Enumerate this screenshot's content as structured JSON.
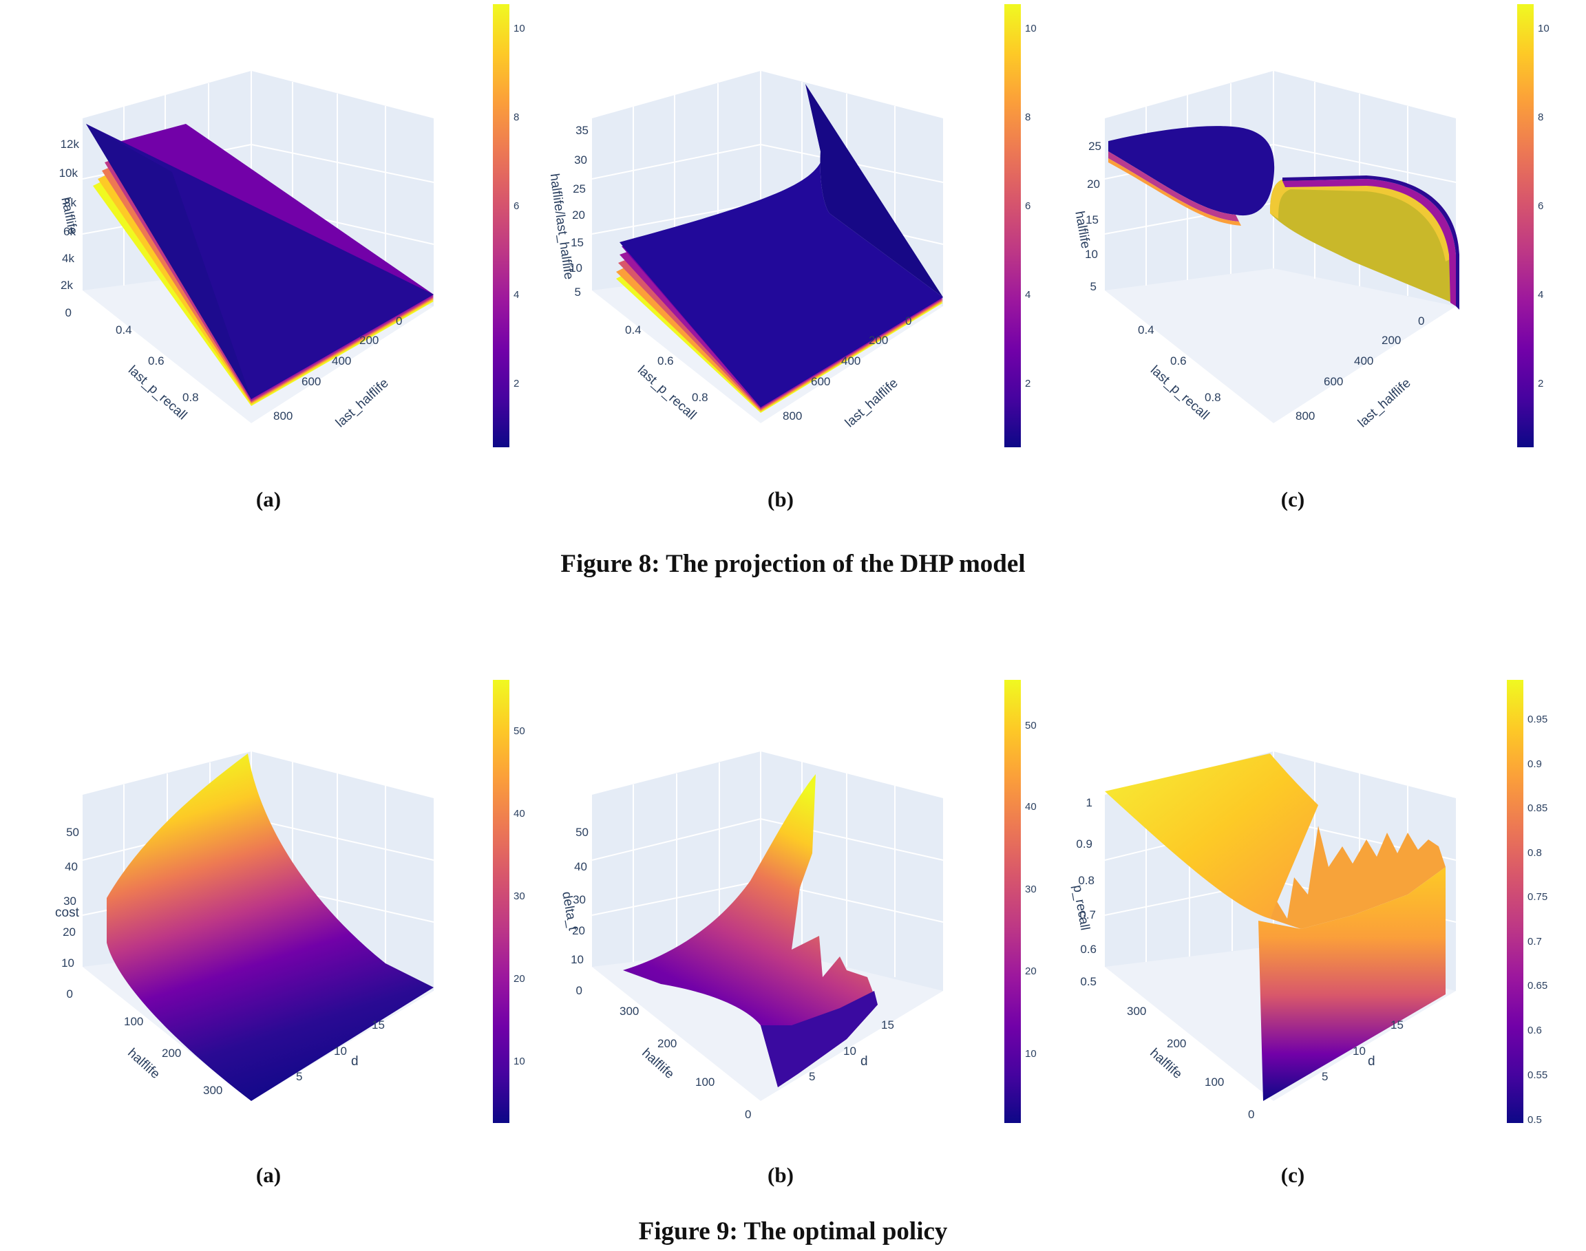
{
  "figures": [
    {
      "caption": "Figure 8: The projection of the DHP model",
      "panels": [
        {
          "label": "(a)",
          "z_title": "halflife",
          "x_title": "last_p_recall",
          "y_title": "last_halflife",
          "z_ticks": [
            "0",
            "2k",
            "4k",
            "6k",
            "8k",
            "10k",
            "12k"
          ],
          "x_ticks": [
            "0.4",
            "0.6",
            "0.8"
          ],
          "y_ticks": [
            "0",
            "200",
            "400",
            "600",
            "800"
          ],
          "colorbar_ticks": [
            "2",
            "4",
            "6",
            "8",
            "10"
          ],
          "colorbar_range": [
            0.5,
            10.5
          ]
        },
        {
          "label": "(b)",
          "z_title": "halflife/last_halflife",
          "x_title": "last_p_recall",
          "y_title": "last_halflife",
          "z_ticks": [
            "5",
            "10",
            "15",
            "20",
            "25",
            "30",
            "35"
          ],
          "x_ticks": [
            "0.4",
            "0.6",
            "0.8"
          ],
          "y_ticks": [
            "0",
            "200",
            "400",
            "600",
            "800"
          ],
          "colorbar_ticks": [
            "2",
            "4",
            "6",
            "8",
            "10"
          ],
          "colorbar_range": [
            0.5,
            10.5
          ]
        },
        {
          "label": "(c)",
          "z_title": "halflife",
          "x_title": "last_p_recall",
          "y_title": "last_halflife",
          "z_ticks": [
            "5",
            "10",
            "15",
            "20",
            "25"
          ],
          "x_ticks": [
            "0.4",
            "0.6",
            "0.8"
          ],
          "y_ticks": [
            "0",
            "200",
            "400",
            "600",
            "800"
          ],
          "colorbar_ticks": [
            "2",
            "4",
            "6",
            "8",
            "10"
          ],
          "colorbar_range": [
            0.5,
            10.5
          ]
        }
      ]
    },
    {
      "caption": "Figure 9: The optimal policy",
      "panels": [
        {
          "label": "(a)",
          "z_title": "cost",
          "x_title": "halflife",
          "y_title": "d",
          "z_ticks": [
            "0",
            "10",
            "20",
            "30",
            "40",
            "50"
          ],
          "x_ticks": [
            "100",
            "200",
            "300"
          ],
          "y_ticks": [
            "5",
            "10",
            "15"
          ],
          "colorbar_ticks": [
            "10",
            "20",
            "30",
            "40",
            "50"
          ],
          "colorbar_range": [
            3,
            55
          ]
        },
        {
          "label": "(b)",
          "z_title": "delta_t",
          "x_title": "halflife",
          "y_title": "d",
          "z_ticks": [
            "0",
            "10",
            "20",
            "30",
            "40",
            "50"
          ],
          "x_ticks": [
            "0",
            "100",
            "200",
            "300"
          ],
          "y_ticks": [
            "5",
            "10",
            "15"
          ],
          "colorbar_ticks": [
            "10",
            "20",
            "30",
            "40",
            "50"
          ],
          "colorbar_range": [
            1,
            55
          ]
        },
        {
          "label": "(c)",
          "z_title": "p_recall",
          "x_title": "halflife",
          "y_title": "d",
          "z_ticks": [
            "0.5",
            "0.6",
            "0.7",
            "0.8",
            "0.9",
            "1"
          ],
          "x_ticks": [
            "0",
            "100",
            "200",
            "300"
          ],
          "y_ticks": [
            "5",
            "10",
            "15"
          ],
          "colorbar_ticks": [
            "0.5",
            "0.55",
            "0.6",
            "0.65",
            "0.7",
            "0.75",
            "0.8",
            "0.85",
            "0.9",
            "0.95"
          ],
          "colorbar_range": [
            0.5,
            1.0
          ]
        }
      ]
    }
  ],
  "colors": {
    "colorscale": [
      "#0d0887",
      "#46039f",
      "#7201a8",
      "#9c179e",
      "#bd3786",
      "#d8576b",
      "#ed7953",
      "#fb9f3a",
      "#fdca26",
      "#f0f921"
    ],
    "grid": "#e5ecf6",
    "axis_text": "#2a3f5f"
  }
}
